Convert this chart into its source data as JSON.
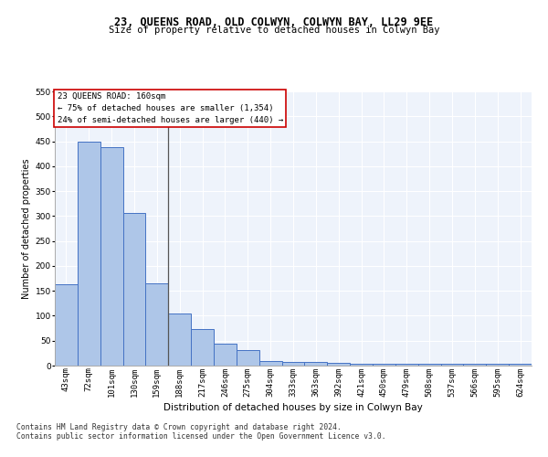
{
  "title": "23, QUEENS ROAD, OLD COLWYN, COLWYN BAY, LL29 9EE",
  "subtitle": "Size of property relative to detached houses in Colwyn Bay",
  "xlabel": "Distribution of detached houses by size in Colwyn Bay",
  "ylabel": "Number of detached properties",
  "footer1": "Contains HM Land Registry data © Crown copyright and database right 2024.",
  "footer2": "Contains public sector information licensed under the Open Government Licence v3.0.",
  "categories": [
    "43sqm",
    "72sqm",
    "101sqm",
    "130sqm",
    "159sqm",
    "188sqm",
    "217sqm",
    "246sqm",
    "275sqm",
    "304sqm",
    "333sqm",
    "363sqm",
    "392sqm",
    "421sqm",
    "450sqm",
    "479sqm",
    "508sqm",
    "537sqm",
    "566sqm",
    "595sqm",
    "624sqm"
  ],
  "values": [
    163,
    450,
    438,
    307,
    165,
    105,
    73,
    44,
    32,
    10,
    8,
    8,
    5,
    4,
    4,
    4,
    4,
    4,
    4,
    4,
    4
  ],
  "bar_color": "#aec6e8",
  "bar_edge_color": "#4472c4",
  "background_color": "#eef3fb",
  "grid_color": "#ffffff",
  "annotation_text": "23 QUEENS ROAD: 160sqm\n← 75% of detached houses are smaller (1,354)\n24% of semi-detached houses are larger (440) →",
  "annotation_box_color": "#ffffff",
  "annotation_box_edge": "#cc0000",
  "vline_position": 4.5,
  "vline_color": "#555555",
  "ylim": [
    0,
    550
  ],
  "yticks": [
    0,
    50,
    100,
    150,
    200,
    250,
    300,
    350,
    400,
    450,
    500,
    550
  ],
  "title_fontsize": 8.5,
  "subtitle_fontsize": 7.5,
  "xlabel_fontsize": 7.5,
  "ylabel_fontsize": 7.0,
  "tick_fontsize": 6.5,
  "annotation_fontsize": 6.5,
  "footer_fontsize": 5.8
}
